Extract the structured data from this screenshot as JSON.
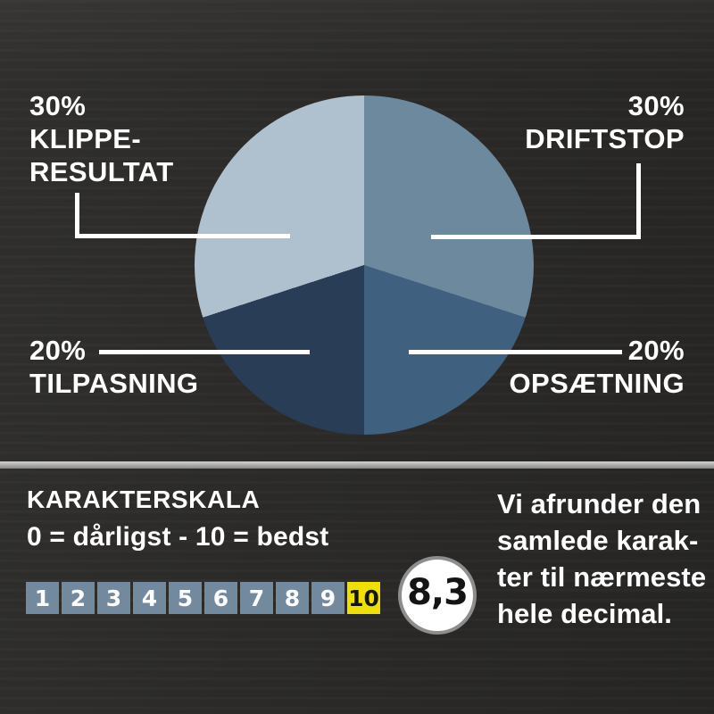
{
  "chart_data": {
    "type": "pie",
    "title": "",
    "labels": [
      "DRIFTSTOP",
      "OPSÆTNING",
      "TILPASNING",
      "KLIPPE-RESULTAT"
    ],
    "values": [
      30,
      20,
      20,
      30
    ],
    "unit": "%",
    "colors": [
      "#6d899e",
      "#3f607e",
      "#293d56",
      "#afc0cf"
    ],
    "start_angle_deg": 0,
    "direction": "clockwise",
    "legend_position": "external-callouts"
  },
  "callouts": {
    "top_left": {
      "pct": "30%",
      "name_line1": "KLIPPE-",
      "name_line2": "RESULTAT"
    },
    "top_right": {
      "pct": "30%",
      "name_line1": "DRIFTSTOP"
    },
    "bottom_left": {
      "pct": "20%",
      "name_line1": "TILPASNING"
    },
    "bottom_right": {
      "pct": "20%",
      "name_line1": "OPSÆTNING"
    }
  },
  "scale": {
    "title": "KARAKTERSKALA",
    "subtitle": "0 = dårligst - 10 = bedst",
    "numbers": [
      "1",
      "2",
      "3",
      "4",
      "5",
      "6",
      "7",
      "8",
      "9",
      "10"
    ],
    "highlight": "10",
    "score": "8,3",
    "note_lines": [
      "Vi afrunder den",
      "samlede karak-",
      "ter til nærmeste",
      "hele decimal."
    ]
  },
  "colors": {
    "background": "#2b2a28",
    "text": "#ffffff",
    "cell_blue": "#73899d",
    "cell_highlight": "#eee000",
    "cell_highlight_text": "#141414",
    "divider_gray": "#a9a9a9",
    "circle_ring": "#8d8d8d",
    "circle_fill": "#ffffff",
    "callout_line": "#ffffff"
  }
}
